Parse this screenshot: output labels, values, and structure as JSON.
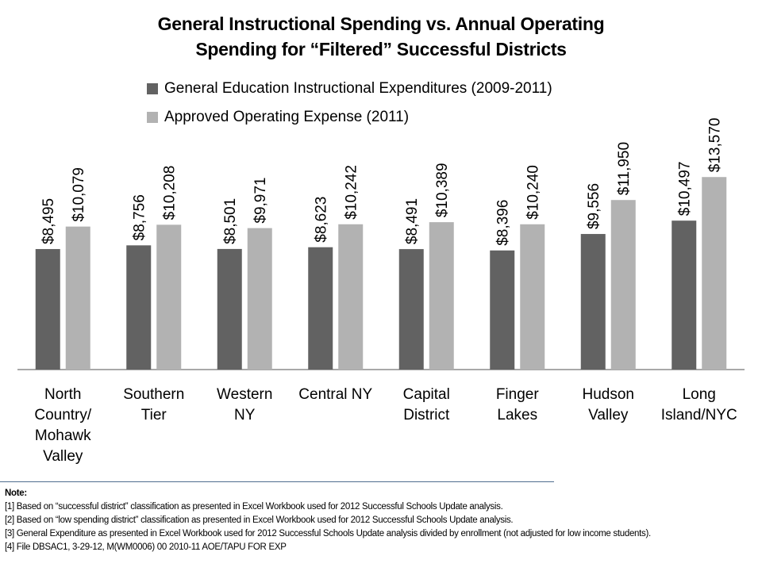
{
  "chart_data": {
    "type": "bar",
    "title": "General Instructional Spending vs. Annual Operating Spending for “Filtered” Successful Districts",
    "title_lines": [
      "General Instructional Spending vs. Annual Operating",
      "Spending for “Filtered” Successful Districts"
    ],
    "xlabel": "",
    "ylabel": "",
    "ylim": [
      0,
      14000
    ],
    "grid": false,
    "legend_position": "top",
    "categories": [
      "North Country/ Mohawk Valley",
      "Southern Tier",
      "Western NY",
      "Central NY",
      "Capital District",
      "Finger Lakes",
      "Hudson Valley",
      "Long Island/NYC"
    ],
    "category_label_lines": [
      [
        "North",
        "Country/",
        "Mohawk",
        "Valley"
      ],
      [
        "Southern",
        "Tier"
      ],
      [
        "Western",
        "NY"
      ],
      [
        "Central NY"
      ],
      [
        "Capital",
        "District"
      ],
      [
        "Finger",
        "Lakes"
      ],
      [
        "Hudson",
        "Valley"
      ],
      [
        "Long",
        "Island/NYC"
      ]
    ],
    "series": [
      {
        "name": "General Education Instructional Expenditures (2009-2011)",
        "color": "#626262",
        "values": [
          8495,
          8756,
          8501,
          8623,
          8491,
          8396,
          9556,
          10497
        ],
        "labels": [
          "$8,495",
          "$8,756",
          "$8,501",
          "$8,623",
          "$8,491",
          "$8,396",
          "$9,556",
          "$10,497"
        ]
      },
      {
        "name": "Approved Operating Expense (2011)",
        "color": "#b2b2b2",
        "values": [
          10079,
          10208,
          9971,
          10242,
          10389,
          10240,
          11950,
          13570
        ],
        "labels": [
          "$10,079",
          "$10,208",
          "$9,971",
          "$10,242",
          "$10,389",
          "$10,240",
          "$11,950",
          "$13,570"
        ]
      }
    ]
  },
  "notes": {
    "heading": "Note:",
    "lines": [
      "[1] Based on “successful district” classification as presented in Excel Workbook used for 2012 Successful Schools Update analysis.",
      "[2] Based on “low spending district” classification as presented in Excel Workbook used for 2012 Successful Schools Update analysis.",
      "[3] General Expenditure as presented in Excel Workbook used for 2012 Successful Schools Update analysis divided by enrollment (not adjusted for low income students).",
      "[4] File DBSAC1, 3-29-12, M(WM0006) 00 2010-11  AOE/TAPU FOR EXP"
    ]
  }
}
